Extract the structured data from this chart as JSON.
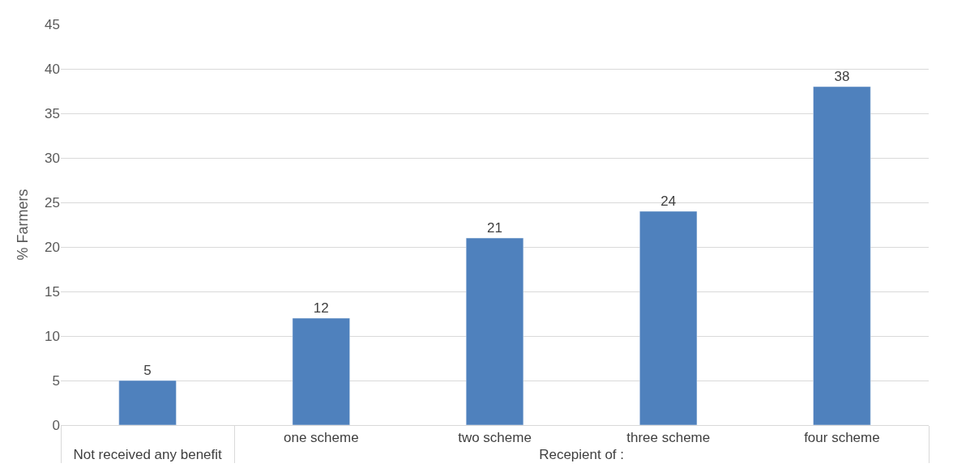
{
  "chart_data": {
    "type": "bar",
    "ylabel": "% Farmers",
    "categories": [
      "Not received any benefit",
      "one scheme",
      "two scheme",
      "three scheme",
      "four scheme"
    ],
    "values": [
      5,
      12,
      21,
      24,
      38
    ],
    "color": "#4f81bd",
    "annotations": [
      "Recepient of :"
    ],
    "ylim": [
      0,
      45
    ],
    "yticks": [
      0,
      5,
      10,
      15,
      20,
      25,
      30,
      35,
      40,
      45
    ],
    "grid": "y",
    "data_labels": true
  }
}
